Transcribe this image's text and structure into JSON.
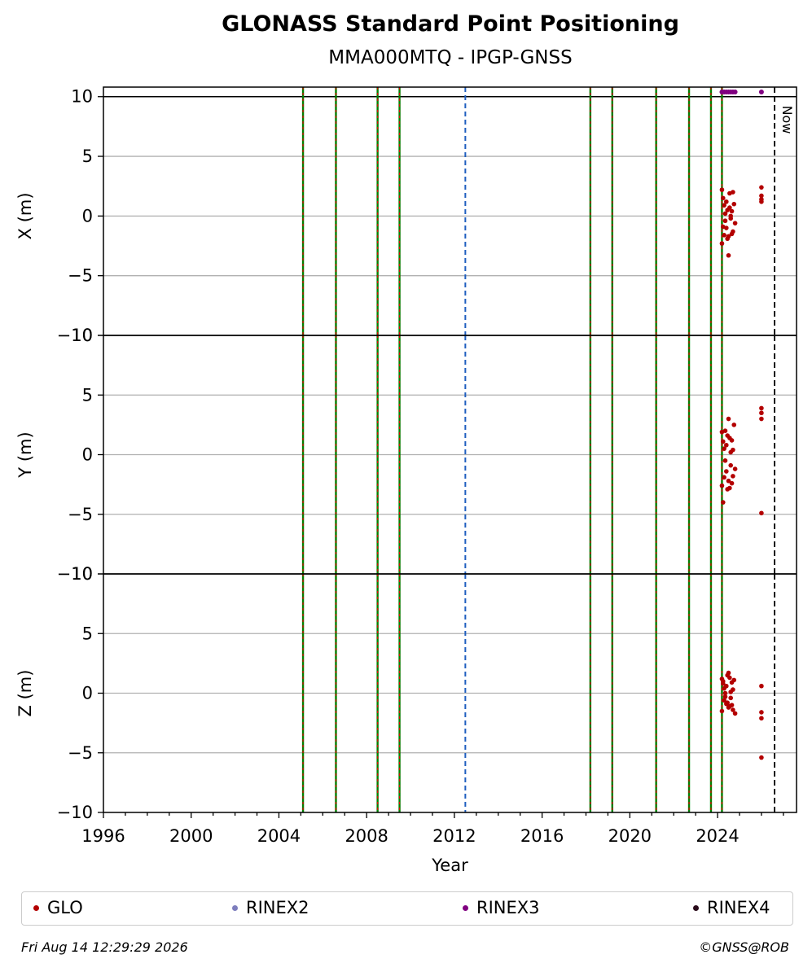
{
  "header": {
    "title": "GLONASS Standard Point Positioning",
    "subtitle": "MMA000MTQ - IPGP-GNSS"
  },
  "footer": {
    "date": "Fri Aug 14 12:29:29 2026",
    "credit": "©GNSS@ROB"
  },
  "legend": [
    {
      "label": "GLO",
      "color": "#b30000"
    },
    {
      "label": "RINEX2",
      "color": "#7d7dbd"
    },
    {
      "label": "RINEX3",
      "color": "#800080"
    },
    {
      "label": "RINEX4",
      "color": "#2a0a1a"
    }
  ],
  "chart_data": {
    "type": "scatter",
    "xlabel": "Year",
    "xlim": [
      1996,
      2027.6
    ],
    "x_ticks": [
      "1996",
      "2000",
      "2004",
      "2008",
      "2012",
      "2016",
      "2020",
      "2024"
    ],
    "now_label": "Now",
    "now_year": 2026.6,
    "event_lines_green_red": [
      2005.1,
      2006.6,
      2008.5,
      2009.5,
      2018.2,
      2019.2,
      2021.2,
      2022.7,
      2023.7,
      2024.2
    ],
    "event_lines_blue": [
      2012.5
    ],
    "colors": {
      "glo": "#b30000",
      "rinex3": "#800080",
      "green": "#008000",
      "blue": "#1f5fbf",
      "grid": "#b0b0b0"
    },
    "rinex3_markers_year": [
      2024.2,
      2024.3,
      2024.4,
      2024.5,
      2024.6,
      2024.7,
      2024.8,
      2026.0
    ],
    "panels": [
      {
        "ylabel": "X (m)",
        "ylim": [
          -10,
          10
        ],
        "y_ticks": [
          "10",
          "5",
          "0",
          "−5",
          "−10"
        ],
        "series": [
          {
            "name": "GLO",
            "points": [
              [
                2024.2,
                2.2
              ],
              [
                2024.25,
                1.5
              ],
              [
                2024.3,
                0.9
              ],
              [
                2024.35,
                -0.4
              ],
              [
                2024.4,
                -1.0
              ],
              [
                2024.45,
                0.5
              ],
              [
                2024.5,
                -1.7
              ],
              [
                2024.55,
                1.9
              ],
              [
                2024.6,
                -0.2
              ],
              [
                2024.65,
                0.4
              ],
              [
                2024.7,
                -1.3
              ],
              [
                2024.75,
                1.0
              ],
              [
                2024.2,
                -2.3
              ],
              [
                2024.3,
                -1.6
              ],
              [
                2024.4,
                1.2
              ],
              [
                2024.5,
                -3.3
              ],
              [
                2024.6,
                0.0
              ],
              [
                2024.7,
                2.0
              ],
              [
                2024.8,
                -0.6
              ],
              [
                2024.25,
                -0.9
              ],
              [
                2024.45,
                -1.9
              ],
              [
                2024.55,
                0.7
              ],
              [
                2024.65,
                -1.5
              ],
              [
                2024.35,
                0.2
              ],
              [
                2026.0,
                2.4
              ],
              [
                2026.0,
                1.7
              ],
              [
                2026.0,
                1.4
              ],
              [
                2026.0,
                1.2
              ]
            ]
          }
        ]
      },
      {
        "ylabel": "Y (m)",
        "ylim": [
          -10,
          10
        ],
        "y_ticks": [
          "10",
          "5",
          "0",
          "−5",
          "−10"
        ],
        "series": [
          {
            "name": "GLO",
            "points": [
              [
                2024.2,
                1.9
              ],
              [
                2024.25,
                1.1
              ],
              [
                2024.3,
                0.5
              ],
              [
                2024.35,
                -0.5
              ],
              [
                2024.4,
                -1.4
              ],
              [
                2024.45,
                1.6
              ],
              [
                2024.5,
                3.0
              ],
              [
                2024.55,
                -2.8
              ],
              [
                2024.6,
                0.2
              ],
              [
                2024.65,
                1.2
              ],
              [
                2024.7,
                -1.8
              ],
              [
                2024.75,
                2.5
              ],
              [
                2024.2,
                -2.6
              ],
              [
                2024.3,
                -1.9
              ],
              [
                2024.4,
                0.8
              ],
              [
                2024.5,
                -2.2
              ],
              [
                2024.6,
                -0.9
              ],
              [
                2024.7,
                0.4
              ],
              [
                2024.8,
                -1.2
              ],
              [
                2024.25,
                -4.0
              ],
              [
                2024.45,
                -2.9
              ],
              [
                2024.55,
                1.4
              ],
              [
                2024.65,
                -2.4
              ],
              [
                2024.35,
                2.0
              ],
              [
                2026.0,
                3.9
              ],
              [
                2026.0,
                3.5
              ],
              [
                2026.0,
                3.0
              ],
              [
                2026.0,
                -4.9
              ]
            ]
          }
        ]
      },
      {
        "ylabel": "Z (m)",
        "ylim": [
          -10,
          10
        ],
        "y_ticks": [
          "10",
          "5",
          "0",
          "−5",
          "−10"
        ],
        "series": [
          {
            "name": "GLO",
            "points": [
              [
                2024.2,
                1.2
              ],
              [
                2024.25,
                0.8
              ],
              [
                2024.3,
                0.4
              ],
              [
                2024.35,
                -0.3
              ],
              [
                2024.4,
                -0.9
              ],
              [
                2024.45,
                1.5
              ],
              [
                2024.5,
                1.7
              ],
              [
                2024.55,
                -1.1
              ],
              [
                2024.6,
                0.1
              ],
              [
                2024.65,
                0.9
              ],
              [
                2024.7,
                -1.4
              ],
              [
                2024.75,
                1.1
              ],
              [
                2024.2,
                -1.5
              ],
              [
                2024.3,
                -0.6
              ],
              [
                2024.4,
                0.6
              ],
              [
                2024.5,
                -1.2
              ],
              [
                2024.6,
                -0.4
              ],
              [
                2024.7,
                0.3
              ],
              [
                2024.8,
                -1.7
              ],
              [
                2024.25,
                1.0
              ],
              [
                2024.45,
                -0.8
              ],
              [
                2024.55,
                1.3
              ],
              [
                2024.65,
                -1.0
              ],
              [
                2024.35,
                0.0
              ],
              [
                2026.0,
                0.6
              ],
              [
                2026.0,
                -1.6
              ],
              [
                2026.0,
                -2.1
              ],
              [
                2026.0,
                -5.4
              ]
            ]
          }
        ]
      }
    ]
  }
}
